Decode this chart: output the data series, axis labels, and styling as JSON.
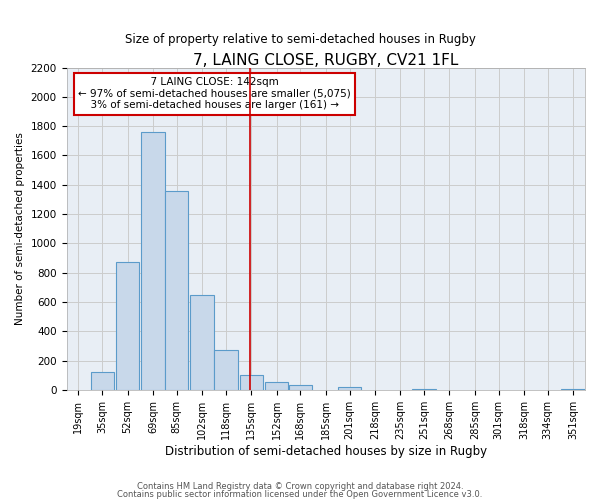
{
  "title": "7, LAING CLOSE, RUGBY, CV21 1FL",
  "subtitle": "Size of property relative to semi-detached houses in Rugby",
  "xlabel": "Distribution of semi-detached houses by size in Rugby",
  "ylabel": "Number of semi-detached properties",
  "bar_color": "#c8d8ea",
  "bar_edge_color": "#5b9bca",
  "bin_labels": [
    "19sqm",
    "35sqm",
    "52sqm",
    "69sqm",
    "85sqm",
    "102sqm",
    "118sqm",
    "135sqm",
    "152sqm",
    "168sqm",
    "185sqm",
    "201sqm",
    "218sqm",
    "235sqm",
    "251sqm",
    "268sqm",
    "285sqm",
    "301sqm",
    "318sqm",
    "334sqm",
    "351sqm"
  ],
  "bin_edges": [
    19,
    35,
    52,
    69,
    85,
    102,
    118,
    135,
    152,
    168,
    185,
    201,
    218,
    235,
    251,
    268,
    285,
    301,
    318,
    334,
    351
  ],
  "bar_heights": [
    0,
    120,
    870,
    1760,
    1355,
    648,
    270,
    100,
    55,
    30,
    0,
    20,
    0,
    0,
    5,
    0,
    0,
    0,
    0,
    0,
    5
  ],
  "ylim": [
    0,
    2200
  ],
  "yticks": [
    0,
    200,
    400,
    600,
    800,
    1000,
    1200,
    1400,
    1600,
    1800,
    2000,
    2200
  ],
  "vline_x": 142,
  "vline_color": "#cc0000",
  "annotation_title": "7 LAING CLOSE: 142sqm",
  "annotation_line1": "← 97% of semi-detached houses are smaller (5,075)",
  "annotation_line2": "3% of semi-detached houses are larger (161) →",
  "annotation_box_color": "#ffffff",
  "annotation_box_edge": "#cc0000",
  "footer1": "Contains HM Land Registry data © Crown copyright and database right 2024.",
  "footer2": "Contains public sector information licensed under the Open Government Licence v3.0.",
  "background_color": "#ffffff",
  "plot_bg_color": "#e8eef5",
  "grid_color": "#cccccc"
}
